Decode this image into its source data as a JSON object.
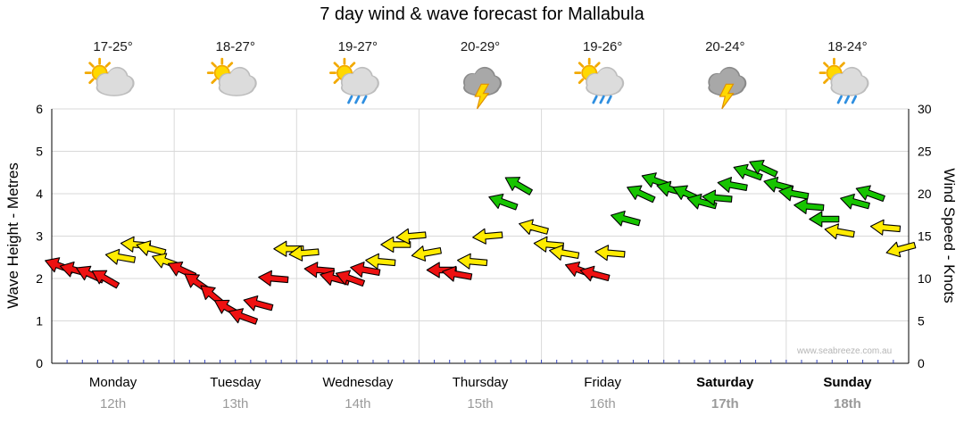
{
  "title": "7 day wind & wave forecast for Mallabula",
  "watermark": "www.seabreeze.com.au",
  "days": [
    {
      "label": "Monday",
      "date": "12th",
      "temp": "17-25°",
      "icon": "sun-cloud",
      "bold": false
    },
    {
      "label": "Tuesday",
      "date": "13th",
      "temp": "18-27°",
      "icon": "sun-cloud",
      "bold": false
    },
    {
      "label": "Wednesday",
      "date": "14th",
      "temp": "19-27°",
      "icon": "sun-cloud-rain",
      "bold": false
    },
    {
      "label": "Thursday",
      "date": "15th",
      "temp": "20-29°",
      "icon": "storm",
      "bold": false
    },
    {
      "label": "Friday",
      "date": "16th",
      "temp": "19-26°",
      "icon": "sun-cloud-rain",
      "bold": false
    },
    {
      "label": "Saturday",
      "date": "17th",
      "temp": "20-24°",
      "icon": "storm",
      "bold": true
    },
    {
      "label": "Sunday",
      "date": "18th",
      "temp": "18-24°",
      "icon": "sun-cloud-rain",
      "bold": true
    }
  ],
  "axes": {
    "left_label": "Wave Height - Metres",
    "right_label": "Wind Speed - Knots",
    "left_ticks": [
      0,
      1,
      2,
      3,
      4,
      5,
      6
    ],
    "right_ticks": [
      0,
      5,
      10,
      15,
      20,
      25,
      30
    ]
  },
  "colors": {
    "red": "#ee1111",
    "yellow": "#ffeb00",
    "green": "#17c400",
    "grid": "#d9d9d9",
    "axis": "#000000",
    "dates": "#9a9a9a",
    "time_tick": "#3344bb"
  },
  "chart_data": {
    "type": "scatter",
    "marker": "wind-arrow",
    "title": "7 day wind & wave forecast for Mallabula",
    "x_axis": {
      "unit": "days",
      "range": [
        0,
        7
      ],
      "categories": [
        "Monday 12th",
        "Tuesday 13th",
        "Wednesday 14th",
        "Thursday 15th",
        "Friday 16th",
        "Saturday 17th",
        "Sunday 18th"
      ]
    },
    "y_axis_left": {
      "label": "Wave Height - Metres",
      "range": [
        0,
        6
      ],
      "ticks": [
        0,
        1,
        2,
        3,
        4,
        5,
        6
      ]
    },
    "y_axis_right": {
      "label": "Wind Speed - Knots",
      "range": [
        0,
        30
      ],
      "ticks": [
        0,
        5,
        10,
        15,
        20,
        25,
        30
      ]
    },
    "grid": true,
    "series": [
      {
        "name": "Wind speed and direction (arrow colour = strength band)",
        "points": [
          {
            "day": 0.063,
            "knots": 11.5,
            "dir": 200,
            "color": "red"
          },
          {
            "day": 0.188,
            "knots": 11.0,
            "dir": 195,
            "color": "red"
          },
          {
            "day": 0.313,
            "knots": 10.5,
            "dir": 205,
            "color": "red"
          },
          {
            "day": 0.438,
            "knots": 10.0,
            "dir": 210,
            "color": "red"
          },
          {
            "day": 0.563,
            "knots": 12.5,
            "dir": 190,
            "color": "yellow"
          },
          {
            "day": 0.688,
            "knots": 14.0,
            "dir": 185,
            "color": "yellow"
          },
          {
            "day": 0.813,
            "knots": 13.5,
            "dir": 195,
            "color": "yellow"
          },
          {
            "day": 0.938,
            "knots": 12.0,
            "dir": 200,
            "color": "yellow"
          },
          {
            "day": 1.063,
            "knots": 11.0,
            "dir": 205,
            "color": "red"
          },
          {
            "day": 1.188,
            "knots": 9.5,
            "dir": 215,
            "color": "red"
          },
          {
            "day": 1.313,
            "knots": 8.0,
            "dir": 220,
            "color": "red"
          },
          {
            "day": 1.438,
            "knots": 6.5,
            "dir": 210,
            "color": "red"
          },
          {
            "day": 1.563,
            "knots": 5.5,
            "dir": 200,
            "color": "red"
          },
          {
            "day": 1.688,
            "knots": 7.0,
            "dir": 195,
            "color": "red"
          },
          {
            "day": 1.813,
            "knots": 10.0,
            "dir": 185,
            "color": "red"
          },
          {
            "day": 1.938,
            "knots": 13.5,
            "dir": 180,
            "color": "yellow"
          },
          {
            "day": 2.063,
            "knots": 13.0,
            "dir": 175,
            "color": "yellow"
          },
          {
            "day": 2.188,
            "knots": 11.0,
            "dir": 185,
            "color": "red"
          },
          {
            "day": 2.313,
            "knots": 10.0,
            "dir": 195,
            "color": "red"
          },
          {
            "day": 2.438,
            "knots": 10.0,
            "dir": 200,
            "color": "red"
          },
          {
            "day": 2.563,
            "knots": 11.0,
            "dir": 190,
            "color": "red"
          },
          {
            "day": 2.688,
            "knots": 12.0,
            "dir": 185,
            "color": "yellow"
          },
          {
            "day": 2.813,
            "knots": 14.0,
            "dir": 180,
            "color": "yellow"
          },
          {
            "day": 2.938,
            "knots": 15.0,
            "dir": 175,
            "color": "yellow"
          },
          {
            "day": 3.063,
            "knots": 13.0,
            "dir": 170,
            "color": "yellow"
          },
          {
            "day": 3.188,
            "knots": 11.0,
            "dir": 180,
            "color": "red"
          },
          {
            "day": 3.313,
            "knots": 10.5,
            "dir": 190,
            "color": "red"
          },
          {
            "day": 3.438,
            "knots": 12.0,
            "dir": 185,
            "color": "yellow"
          },
          {
            "day": 3.563,
            "knots": 15.0,
            "dir": 175,
            "color": "yellow"
          },
          {
            "day": 3.688,
            "knots": 19.0,
            "dir": 200,
            "color": "green"
          },
          {
            "day": 3.813,
            "knots": 21.0,
            "dir": 210,
            "color": "green"
          },
          {
            "day": 3.938,
            "knots": 16.0,
            "dir": 195,
            "color": "yellow"
          },
          {
            "day": 4.063,
            "knots": 14.0,
            "dir": 185,
            "color": "yellow"
          },
          {
            "day": 4.188,
            "knots": 13.0,
            "dir": 190,
            "color": "yellow"
          },
          {
            "day": 4.313,
            "knots": 11.0,
            "dir": 200,
            "color": "red"
          },
          {
            "day": 4.438,
            "knots": 10.5,
            "dir": 195,
            "color": "red"
          },
          {
            "day": 4.563,
            "knots": 13.0,
            "dir": 185,
            "color": "yellow"
          },
          {
            "day": 4.688,
            "knots": 17.0,
            "dir": 195,
            "color": "green"
          },
          {
            "day": 4.813,
            "knots": 20.0,
            "dir": 205,
            "color": "green"
          },
          {
            "day": 4.938,
            "knots": 21.5,
            "dir": 200,
            "color": "green"
          },
          {
            "day": 5.063,
            "knots": 20.5,
            "dir": 195,
            "color": "green"
          },
          {
            "day": 5.188,
            "knots": 20.0,
            "dir": 205,
            "color": "green"
          },
          {
            "day": 5.313,
            "knots": 19.0,
            "dir": 195,
            "color": "green"
          },
          {
            "day": 5.438,
            "knots": 19.5,
            "dir": 185,
            "color": "green"
          },
          {
            "day": 5.563,
            "knots": 21.0,
            "dir": 190,
            "color": "green"
          },
          {
            "day": 5.688,
            "knots": 22.5,
            "dir": 200,
            "color": "green"
          },
          {
            "day": 5.813,
            "knots": 23.0,
            "dir": 205,
            "color": "green"
          },
          {
            "day": 5.938,
            "knots": 21.0,
            "dir": 195,
            "color": "green"
          },
          {
            "day": 6.063,
            "knots": 20.0,
            "dir": 190,
            "color": "green"
          },
          {
            "day": 6.188,
            "knots": 18.5,
            "dir": 185,
            "color": "green"
          },
          {
            "day": 6.313,
            "knots": 17.0,
            "dir": 180,
            "color": "green"
          },
          {
            "day": 6.438,
            "knots": 15.5,
            "dir": 190,
            "color": "yellow"
          },
          {
            "day": 6.563,
            "knots": 19.0,
            "dir": 195,
            "color": "green"
          },
          {
            "day": 6.688,
            "knots": 20.0,
            "dir": 200,
            "color": "green"
          },
          {
            "day": 6.813,
            "knots": 16.0,
            "dir": 185,
            "color": "yellow"
          },
          {
            "day": 6.938,
            "knots": 13.5,
            "dir": 165,
            "color": "yellow"
          }
        ]
      }
    ]
  }
}
